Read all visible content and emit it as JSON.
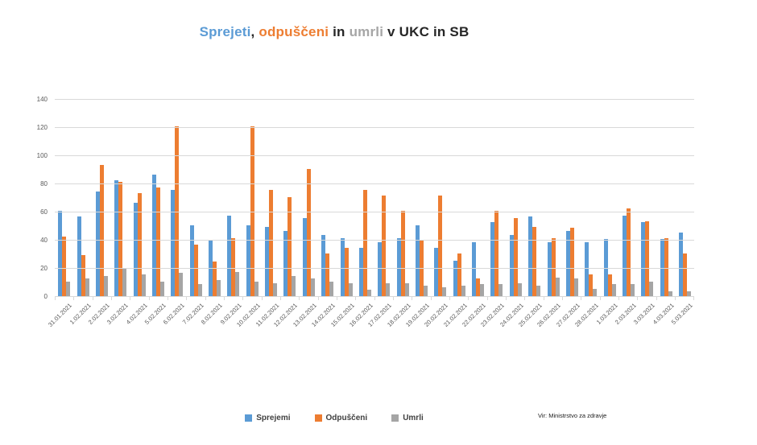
{
  "title": {
    "full_text": "Sprejeti, odpuščeni in umrli v UKC in SB",
    "parts": [
      {
        "text": "Sprejeti",
        "color": "#5b9bd5"
      },
      {
        "text": ", ",
        "color": "#262626"
      },
      {
        "text": "odpuščeni",
        "color": "#ed7d31"
      },
      {
        "text": " in ",
        "color": "#262626"
      },
      {
        "text": "umrli",
        "color": "#a6a6a6"
      },
      {
        "text": " v UKC in SB",
        "color": "#262626"
      }
    ]
  },
  "source_note": "Vir: Ministrstvo za zdravje",
  "legend": [
    {
      "label": "Sprejemi",
      "color": "#5b9bd5"
    },
    {
      "label": "Odpuščeni",
      "color": "#ed7d31"
    },
    {
      "label": "Umrli",
      "color": "#a5a5a5"
    }
  ],
  "colors": {
    "blue": "#5b9bd5",
    "orange": "#ed7d31",
    "gray": "#a5a5a5",
    "gridline": "#d9d9d9",
    "axis_text": "#595959"
  },
  "chart_data": {
    "type": "bar",
    "title": "Sprejeti, odpuščeni in umrli v UKC in SB",
    "xlabel": "",
    "ylabel": "",
    "ylim": [
      0,
      140
    ],
    "yticks": [
      0,
      20,
      40,
      60,
      80,
      100,
      120,
      140
    ],
    "grid": true,
    "legend_position": "bottom",
    "categories": [
      "31.01.2021",
      "1.02.2021",
      "2.02.2021",
      "3.02.2021",
      "4.02.2021",
      "5.02.2021",
      "6.02.2021",
      "7.02.2021",
      "8.02.2021",
      "9.02.2021",
      "10.02.2021",
      "11.02.2021",
      "12.02.2021",
      "13.02.2021",
      "14.02.2021",
      "15.02.2021",
      "16.02.2021",
      "17.02.2021",
      "18.02.2021",
      "19.02.2021",
      "20.02.2021",
      "21.02.2021",
      "22.02.2021",
      "23.02.2021",
      "24.02.2021",
      "25.02.2021",
      "26.02.2021",
      "27.02.2021",
      "28.02.2021",
      "1.03.2021",
      "2.03.2021",
      "3.03.2021",
      "4.03.2021",
      "5.03.2021"
    ],
    "series": [
      {
        "name": "Sprejemi",
        "color": "#5b9bd5",
        "values": [
          61,
          57,
          75,
          83,
          67,
          87,
          76,
          51,
          40,
          58,
          51,
          50,
          47,
          56,
          44,
          42,
          35,
          39,
          42,
          51,
          35,
          26,
          39,
          53,
          44,
          57,
          39,
          47,
          39,
          41,
          58,
          53,
          41,
          46
        ]
      },
      {
        "name": "Odpuščeni",
        "color": "#ed7d31",
        "values": [
          43,
          30,
          94,
          82,
          74,
          78,
          121,
          37,
          25,
          42,
          121,
          76,
          71,
          91,
          31,
          35,
          76,
          72,
          61,
          40,
          72,
          31,
          13,
          61,
          56,
          50,
          42,
          49,
          16,
          16,
          63,
          54,
          42,
          31
        ]
      },
      {
        "name": "Umrli",
        "color": "#a5a5a5",
        "values": [
          11,
          13,
          15,
          20,
          16,
          11,
          17,
          9,
          12,
          18,
          11,
          10,
          15,
          13,
          11,
          10,
          5,
          10,
          10,
          8,
          7,
          8,
          9,
          9,
          10,
          8,
          14,
          13,
          6,
          9,
          9,
          11,
          4,
          4
        ]
      }
    ]
  }
}
